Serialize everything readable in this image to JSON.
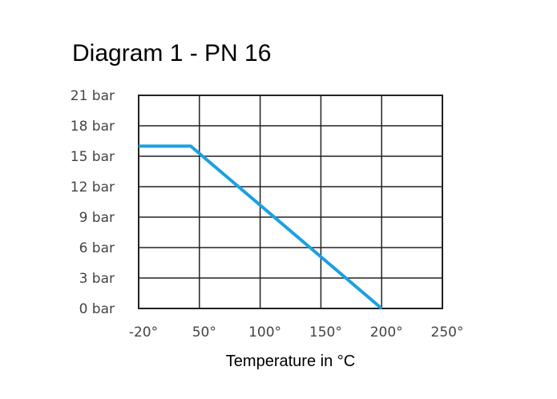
{
  "chart_data": {
    "type": "line",
    "title": "Diagram 1 - PN 16",
    "xlabel": "Temperature in °C",
    "ylabel": "",
    "x_ticks": [
      -20,
      50,
      100,
      150,
      200,
      250
    ],
    "x_tick_labels": [
      "-20°",
      "50°",
      "100°",
      "150°",
      "200°",
      "250°"
    ],
    "y_ticks": [
      0,
      3,
      6,
      9,
      12,
      15,
      18,
      21
    ],
    "y_tick_labels": [
      "0 bar",
      "3 bar",
      "6 bar",
      "9 bar",
      "12 bar",
      "15 bar",
      "18 bar",
      "21 bar"
    ],
    "xlim": [
      -20,
      250
    ],
    "ylim": [
      0,
      21
    ],
    "grid": true,
    "series": [
      {
        "x": [
          -20,
          40,
          200
        ],
        "y": [
          16,
          16,
          0
        ],
        "color": "#1ba1e2"
      }
    ]
  }
}
